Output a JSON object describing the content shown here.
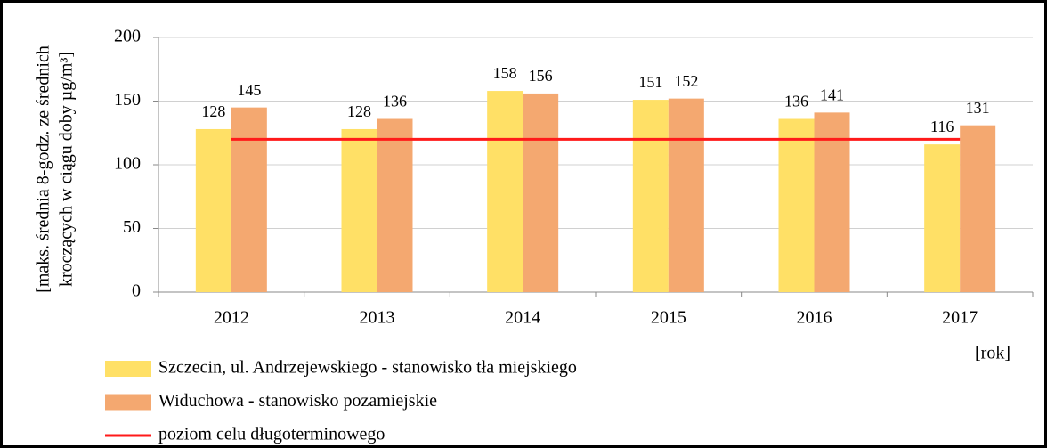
{
  "chart_data": {
    "type": "bar",
    "y_label": [
      "[maks. średnia 8-godz. ze średnich",
      "kroczących w ciągu doby µg/m³]"
    ],
    "x_label": "[rok]",
    "categories": [
      "2012",
      "2013",
      "2014",
      "2015",
      "2016",
      "2017"
    ],
    "series": [
      {
        "name": "Szczecin, ul. Andrzejewskiego - stanowisko tła miejskiego",
        "color": "#ffe066",
        "values": [
          128,
          128,
          158,
          151,
          136,
          116
        ]
      },
      {
        "name": "Widuchowa - stanowisko pozamiejskie",
        "color": "#f4a870",
        "values": [
          145,
          136,
          156,
          152,
          141,
          131
        ]
      },
      {
        "name": "poziom celu długoterminowego",
        "type": "line",
        "color": "#ff1a1a",
        "values": [
          120,
          120,
          120,
          120,
          120,
          120
        ]
      }
    ],
    "ylim": [
      0,
      200
    ],
    "yticks": [
      0,
      50,
      100,
      150,
      200
    ],
    "grid": true
  }
}
